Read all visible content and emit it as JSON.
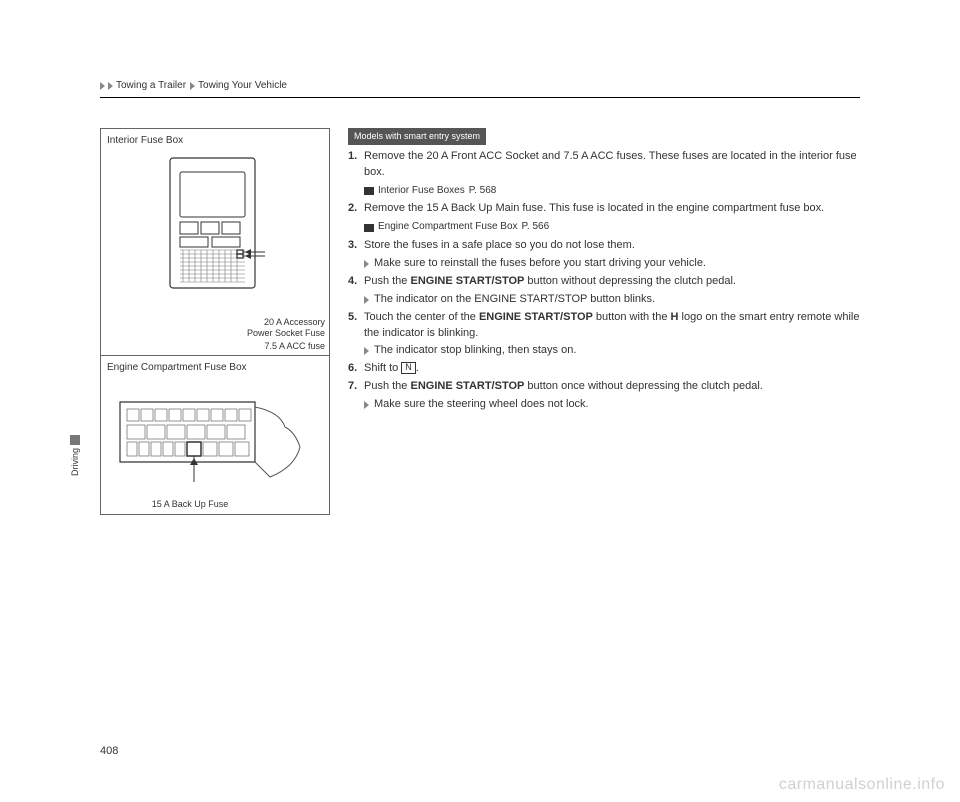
{
  "breadcrumb": {
    "part1": "Towing a Trailer",
    "part2": "Towing Your Vehicle"
  },
  "sideTab": "Driving",
  "pageNumber": "408",
  "watermark": "carmanualsonline.info",
  "left": {
    "box1": {
      "title": "Interior Fuse Box",
      "label1": "20 A Accessory\nPower Socket Fuse",
      "label2": "7.5 A ACC fuse"
    },
    "box2": {
      "title": "Engine Compartment Fuse Box",
      "label": "15 A Back Up Fuse"
    }
  },
  "right": {
    "modelTag": "Models with smart entry system",
    "steps": [
      {
        "num": "1.",
        "text": "Remove the 20 A Front ACC Socket and 7.5 A ACC fuses. These fuses are located in the interior fuse box."
      },
      {
        "ref": true,
        "bold": "Interior Fuse Boxes",
        "page": "P. 568"
      },
      {
        "num": "2.",
        "text": "Remove the 15 A Back Up Main fuse. This fuse is located in the engine compartment fuse box."
      },
      {
        "ref": true,
        "bold": "Engine Compartment Fuse Box",
        "page": "P. 566"
      },
      {
        "num": "3.",
        "text": "Store the fuses in a safe place so you do not lose them."
      },
      {
        "sub": true,
        "text": "Make sure to reinstall the fuses before you start driving your vehicle."
      },
      {
        "num": "4.",
        "html": "Push the <span class='strong'>ENGINE START/STOP</span> button without depressing the clutch pedal."
      },
      {
        "sub": true,
        "html": "The indicator on the <span class='strong'>ENGINE START/STOP</span> button blinks."
      },
      {
        "num": "5.",
        "html": "Touch the center of the <span class='strong'>ENGINE START/STOP</span> button with the <span class='strong'>H</span> logo on the smart entry remote while the indicator is blinking."
      },
      {
        "sub": true,
        "text": "The indicator stop blinking, then stays on."
      },
      {
        "num": "6.",
        "html": "Shift to <span class='nbox'>N</span>."
      },
      {
        "num": "7.",
        "html": "Push the <span class='strong'>ENGINE START/STOP</span> button once without depressing the clutch pedal."
      },
      {
        "sub": true,
        "text": "Make sure the steering wheel does not lock."
      }
    ]
  }
}
